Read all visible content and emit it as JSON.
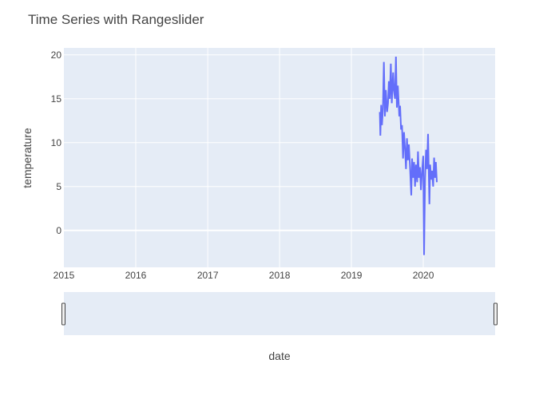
{
  "chart_data": {
    "type": "line",
    "title": "Time Series with Rangeslider",
    "xlabel": "date",
    "ylabel": "temperature",
    "x_axis_type": "date",
    "xlim": [
      "2015-01-01",
      "2020-12-31"
    ],
    "ylim": [
      -4.2,
      20.8
    ],
    "x_ticks": [
      "2015",
      "2016",
      "2017",
      "2018",
      "2019",
      "2020"
    ],
    "y_ticks": [
      0,
      5,
      10,
      15,
      20
    ],
    "grid": true,
    "rangeslider": true,
    "colors": {
      "line": "#636efa",
      "plot_background": "#e5ecf6",
      "grid": "#ffffff",
      "text": "#444444"
    },
    "series": [
      {
        "x": [
          "2019-05-25",
          "2019-05-28",
          "2019-06-01",
          "2019-06-05",
          "2019-06-10",
          "2019-06-15",
          "2019-06-20",
          "2019-06-25",
          "2019-07-01",
          "2019-07-06",
          "2019-07-10",
          "2019-07-15",
          "2019-07-20",
          "2019-07-25",
          "2019-08-01",
          "2019-08-05",
          "2019-08-10",
          "2019-08-15",
          "2019-08-20",
          "2019-08-25",
          "2019-09-01",
          "2019-09-05",
          "2019-09-10",
          "2019-09-15",
          "2019-09-20",
          "2019-09-25",
          "2019-10-01",
          "2019-10-05",
          "2019-10-10",
          "2019-10-15",
          "2019-10-20",
          "2019-10-25",
          "2019-11-01",
          "2019-11-05",
          "2019-11-10",
          "2019-11-15",
          "2019-11-20",
          "2019-11-25",
          "2019-12-01",
          "2019-12-05",
          "2019-12-10",
          "2019-12-15",
          "2019-12-20",
          "2019-12-25",
          "2020-01-01",
          "2020-01-05",
          "2020-01-10",
          "2020-01-15",
          "2020-01-20",
          "2020-01-25",
          "2020-02-01",
          "2020-02-05",
          "2020-02-10",
          "2020-02-15",
          "2020-02-20",
          "2020-02-25",
          "2020-03-01",
          "2020-03-05",
          "2020-03-10"
        ],
        "y": [
          13.5,
          10.8,
          14.3,
          12.0,
          13.8,
          19.2,
          13.0,
          16.0,
          13.5,
          14.5,
          17.0,
          15.0,
          19.0,
          14.5,
          18.0,
          16.0,
          15.0,
          19.8,
          14.0,
          16.5,
          13.0,
          14.2,
          11.5,
          12.0,
          8.2,
          11.2,
          9.0,
          7.0,
          10.5,
          8.0,
          9.8,
          7.5,
          4.0,
          8.2,
          6.0,
          7.8,
          5.0,
          7.5,
          5.5,
          9.0,
          6.0,
          7.2,
          4.6,
          6.5,
          8.5,
          -2.8,
          6.0,
          9.2,
          7.0,
          11.0,
          3.0,
          7.5,
          5.8,
          6.8,
          5.0,
          8.3,
          6.0,
          7.8,
          5.5
        ]
      }
    ]
  }
}
